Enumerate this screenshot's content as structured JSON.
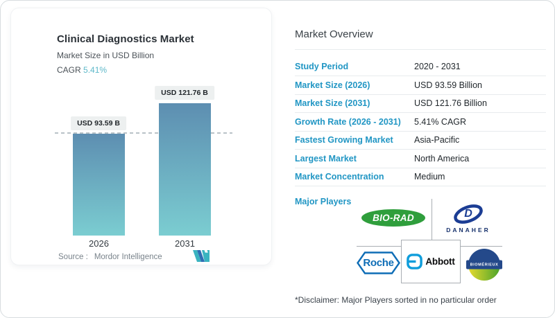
{
  "card": {
    "title": "Clinical Diagnostics Market",
    "subtitle": "Market Size in USD Billion",
    "cagr_label": "CAGR",
    "cagr_value": "5.41%",
    "source_label": "Source :",
    "source_value": "Mordor Intelligence",
    "logo_name": "mordor-intelligence-logo"
  },
  "chart_data": {
    "type": "bar",
    "title": "Clinical Diagnostics Market",
    "subtitle": "Market Size in USD Billion",
    "unit": "USD Billion",
    "categories": [
      "2026",
      "2031"
    ],
    "values": [
      93.59,
      121.76
    ],
    "bar_labels": [
      "USD 93.59 B",
      "USD 121.76 B"
    ],
    "cagr_percent": 5.41,
    "ylim": [
      0,
      121.76
    ],
    "reference_line": {
      "y": 93.59,
      "style": "dashed"
    },
    "grid": false,
    "bar_gradient": [
      "#5d8eb1",
      "#7bcdd1"
    ]
  },
  "overview": {
    "heading": "Market Overview",
    "rows": [
      {
        "label": "Study Period",
        "value": "2020 - 2031"
      },
      {
        "label": "Market Size (2026)",
        "value": "USD 93.59 Billion"
      },
      {
        "label": "Market Size (2031)",
        "value": "USD 121.76 Billion"
      },
      {
        "label": "Growth Rate (2026 - 2031)",
        "value": "5.41% CAGR"
      },
      {
        "label": "Fastest Growing Market",
        "value": "Asia-Pacific"
      },
      {
        "label": "Largest Market",
        "value": "North America"
      },
      {
        "label": "Market Concentration",
        "value": "Medium"
      }
    ],
    "major_players_label": "Major Players",
    "players": [
      {
        "name": "Bio-Rad",
        "wordmark": "BIO-RAD",
        "brand_color": "#2f9e3c"
      },
      {
        "name": "Danaher",
        "wordmark": "DANAHER",
        "monogram": "D",
        "brand_color": "#1b3d94"
      },
      {
        "name": "Roche",
        "wordmark": "Roche",
        "brand_color": "#0e6db6"
      },
      {
        "name": "Abbott",
        "wordmark": "Abbott",
        "brand_color": "#0f9ddb"
      },
      {
        "name": "bioMerieux",
        "wordmark": "BIOMÉRIEUX",
        "brand_color": "#24498a"
      }
    ],
    "disclaimer": "*Disclaimer: Major Players sorted in no particular order"
  },
  "colors": {
    "accent_blue": "#2196c4",
    "teal": "#5db8c9",
    "bar_top": "#5d8eb1",
    "bar_bottom": "#7bcdd1",
    "dashed_line": "#b9c2c7",
    "divider": "#e7ebed",
    "value_text": "#22282d",
    "mordor_teal": "#3ab3c0",
    "mordor_blue": "#2f6db3"
  }
}
